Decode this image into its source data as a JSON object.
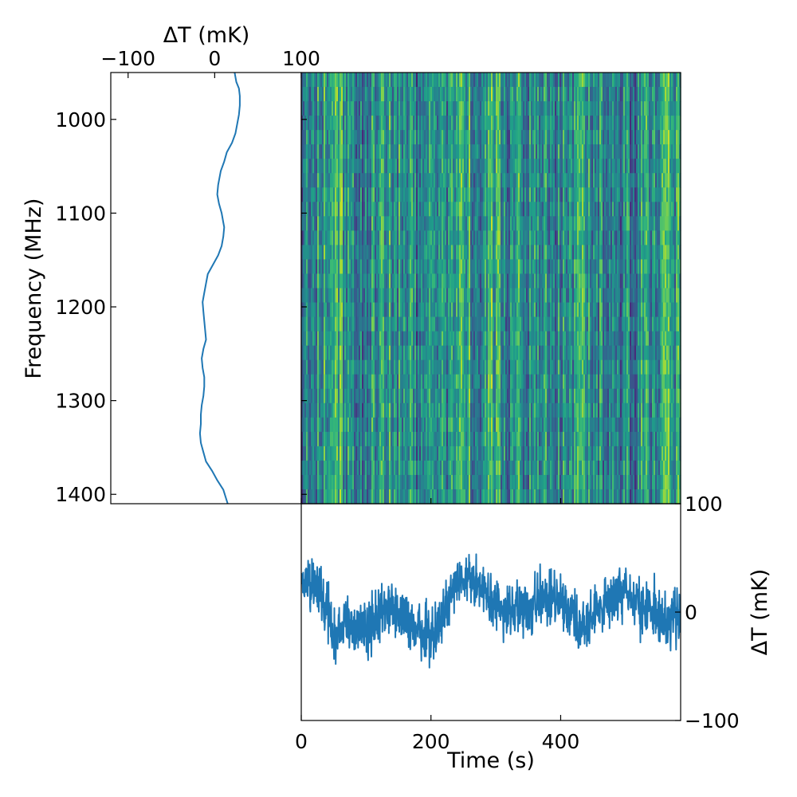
{
  "chart_data": [
    {
      "name": "frequency-profile",
      "type": "line",
      "orientation": "vertical",
      "xlabel": "ΔT (mK)",
      "ylabel": "Frequency (MHz)",
      "xlim": [
        -120,
        100
      ],
      "ylim": [
        1410,
        950
      ],
      "xticks": [
        -100,
        0,
        100
      ],
      "xtick_labels": [
        "−100",
        "0",
        "100"
      ],
      "yticks": [
        1000,
        1100,
        1200,
        1300,
        1400
      ],
      "ytick_labels": [
        "1000",
        "1100",
        "1200",
        "1300",
        "1400"
      ],
      "color": "#1f77b4",
      "series": [
        {
          "x": [
            23,
            25,
            28,
            29,
            29,
            28,
            26,
            24,
            20,
            14,
            11,
            7,
            4,
            3,
            5,
            8,
            10,
            11,
            10,
            8,
            4,
            -2,
            -8,
            -10,
            -12,
            -14,
            -13,
            -12,
            -11,
            -10,
            -13,
            -15,
            -14,
            -12,
            -12,
            -13,
            -15,
            -16,
            -16,
            -17,
            -16,
            -13,
            -10,
            -3,
            3,
            10,
            15
          ],
          "y": [
            950,
            960,
            967,
            975,
            985,
            995,
            1005,
            1015,
            1025,
            1035,
            1045,
            1055,
            1070,
            1080,
            1090,
            1100,
            1110,
            1115,
            1125,
            1135,
            1145,
            1155,
            1165,
            1175,
            1185,
            1195,
            1205,
            1215,
            1225,
            1235,
            1245,
            1255,
            1265,
            1275,
            1285,
            1295,
            1305,
            1315,
            1325,
            1335,
            1345,
            1355,
            1365,
            1375,
            1385,
            1395,
            1410
          ]
        }
      ]
    },
    {
      "name": "waterfall",
      "type": "heatmap",
      "colormap": "viridis",
      "xlim": [
        0,
        585
      ],
      "ylim": [
        1410,
        950
      ],
      "xticks": [
        0,
        200,
        400
      ],
      "yticks": [
        1000,
        1100,
        1200,
        1300,
        1400
      ]
    },
    {
      "name": "time-series",
      "type": "line",
      "xlabel": "Time (s)",
      "ylabel": "ΔT (mK)",
      "xlim": [
        0,
        585
      ],
      "ylim": [
        -100,
        100
      ],
      "xticks": [
        0,
        200,
        400
      ],
      "xtick_labels": [
        "0",
        "200",
        "400"
      ],
      "yticks": [
        100,
        0,
        -100
      ],
      "ytick_labels": [
        "100",
        "0",
        "−100"
      ],
      "color": "#1f77b4",
      "envelope": {
        "t": [
          0,
          10,
          20,
          40,
          50,
          60,
          80,
          100,
          120,
          140,
          160,
          180,
          200,
          220,
          240,
          260,
          280,
          300,
          320,
          340,
          360,
          380,
          400,
          420,
          440,
          460,
          480,
          500,
          520,
          540,
          560,
          585
        ],
        "mean": [
          25,
          30,
          25,
          5,
          -30,
          -5,
          -10,
          -15,
          -5,
          5,
          -10,
          -15,
          -15,
          -5,
          25,
          30,
          20,
          5,
          0,
          0,
          10,
          15,
          5,
          -5,
          -10,
          5,
          10,
          20,
          10,
          5,
          -15,
          0
        ],
        "amplitude": 26
      }
    }
  ]
}
